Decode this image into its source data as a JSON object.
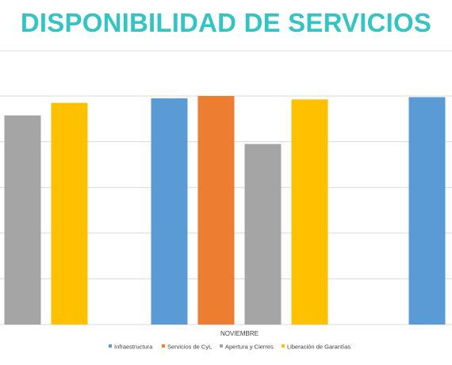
{
  "title": "DISPONIBILIDAD DE SERVICIOS",
  "chart_data": {
    "type": "bar",
    "ylim": [
      0,
      100
    ],
    "grid": true,
    "legend_position": "bottom",
    "series": [
      {
        "name": "Infraestructura",
        "color": "#5B9BD5"
      },
      {
        "name": "Servicios de CyL",
        "color": "#ED7D31"
      },
      {
        "name": "Apertura y Cierres",
        "color": "#A5A5A5"
      },
      {
        "name": "Liberación de Garantías",
        "color": "#FFC000"
      }
    ],
    "categories": [
      {
        "label": "",
        "values": [
          null,
          null,
          91.5,
          97.0
        ]
      },
      {
        "label": "NOVIEMBRE",
        "values": [
          99.0,
          100.0,
          79.0,
          98.5
        ]
      },
      {
        "label": "",
        "values": [
          99.5,
          null,
          null,
          null
        ]
      }
    ]
  }
}
